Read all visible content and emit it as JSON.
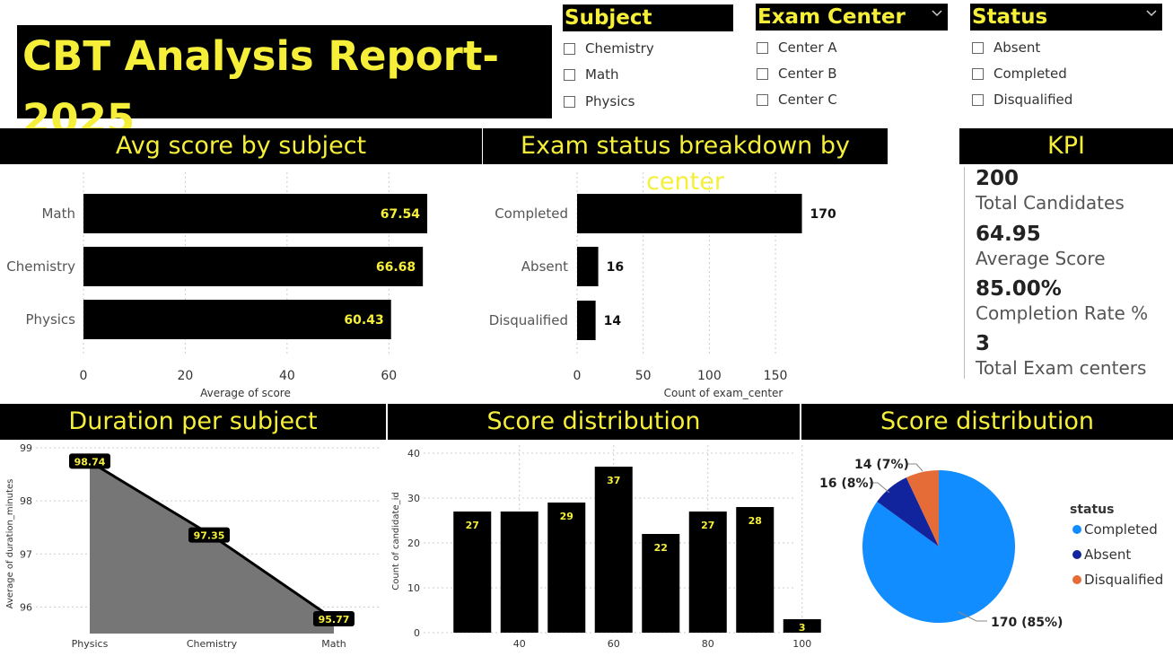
{
  "report": {
    "title": "CBT Analysis Report-2025"
  },
  "slicers": {
    "subject": {
      "label": "Subject",
      "items": [
        "Chemistry",
        "Math",
        "Physics"
      ]
    },
    "center": {
      "label": "Exam Center",
      "items": [
        "Center A",
        "Center B",
        "Center C"
      ]
    },
    "status": {
      "label": "Status",
      "items": [
        "Absent",
        "Completed",
        "Disqualified"
      ]
    }
  },
  "headers": {
    "avg_score": "Avg score by subject",
    "status_breakdown": "Exam status breakdown by center",
    "kpi": "KPI",
    "duration": "Duration per subject",
    "score_dist": "Score distribution",
    "score_dist_pie": "Score distribution"
  },
  "kpi": [
    {
      "value": "200",
      "label": "Total Candidates"
    },
    {
      "value": "64.95",
      "label": "Average Score"
    },
    {
      "value": "85.00%",
      "label": "Completion Rate %"
    },
    {
      "value": "3",
      "label": "Total Exam centers"
    }
  ],
  "colors": {
    "accent": "#f5ef3a",
    "bar": "#000000",
    "area": "#767676",
    "completed": "#118dff",
    "absent": "#12239e",
    "disqualified": "#e66c37"
  },
  "chart_data": [
    {
      "type": "bar",
      "orientation": "horizontal",
      "categories": [
        "Math",
        "Chemistry",
        "Physics"
      ],
      "values": [
        67.54,
        66.68,
        60.43
      ],
      "labels": [
        "67.54",
        "66.68",
        "60.43"
      ],
      "xlabel": "Average of score",
      "xticks": [
        "0",
        "20",
        "40",
        "60"
      ],
      "xlim": [
        0,
        70
      ]
    },
    {
      "type": "bar",
      "orientation": "horizontal",
      "categories": [
        "Completed",
        "Absent",
        "Disqualified"
      ],
      "values": [
        170,
        16,
        14
      ],
      "labels": [
        "170",
        "16",
        "14"
      ],
      "xlabel": "Count of exam_center",
      "xticks": [
        "0",
        "50",
        "100",
        "150"
      ],
      "xlim": [
        0,
        190
      ]
    },
    {
      "type": "area",
      "categories": [
        "Physics",
        "Chemistry",
        "Math"
      ],
      "values": [
        98.74,
        97.35,
        95.77
      ],
      "labels": [
        "98.74",
        "97.35",
        "95.77"
      ],
      "ylabel": "Average of duration_minutes",
      "yticks": [
        "96",
        "97",
        "98",
        "99"
      ],
      "ylim": [
        95.5,
        99
      ]
    },
    {
      "type": "bar",
      "x": [
        30,
        40,
        50,
        60,
        70,
        80,
        90,
        100
      ],
      "values": [
        27,
        27,
        29,
        37,
        22,
        27,
        28,
        3
      ],
      "labels": [
        "27",
        "",
        "29",
        "37",
        "22",
        "27",
        "28",
        "3"
      ],
      "ylabel": "Count of candidate_id",
      "yticks": [
        "0",
        "10",
        "20",
        "30",
        "40"
      ],
      "xticks": [
        "40",
        "60",
        "80",
        "100"
      ],
      "ylim": [
        0,
        40
      ]
    },
    {
      "type": "pie",
      "legend_title": "status",
      "legend_position": "right",
      "slices": [
        {
          "name": "Completed",
          "value": 170,
          "label": "170 (85%)"
        },
        {
          "name": "Absent",
          "value": 16,
          "label": "16 (8%)"
        },
        {
          "name": "Disqualified",
          "value": 14,
          "label": "14 (7%)"
        }
      ]
    }
  ]
}
